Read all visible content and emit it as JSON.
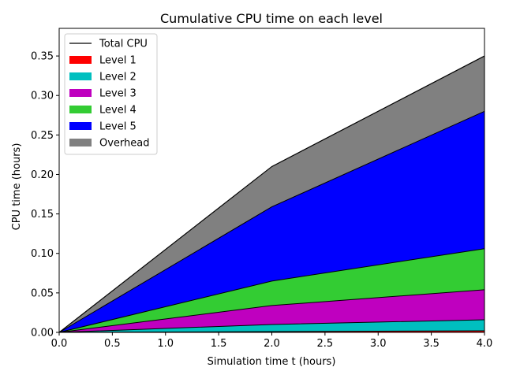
{
  "chart_data": {
    "type": "area",
    "title": "Cumulative CPU time on each level",
    "xlabel": "Simulation time t (hours)",
    "ylabel": "CPU time (hours)",
    "xlim": [
      0,
      4
    ],
    "ylim": [
      0,
      0.385
    ],
    "grid": false,
    "legend_position": "top-left",
    "x": [
      0,
      2,
      4
    ],
    "x_ticks": [
      "0.0",
      "0.5",
      "1.0",
      "1.5",
      "2.0",
      "2.5",
      "3.0",
      "3.5",
      "4.0"
    ],
    "y_ticks": [
      "0.00",
      "0.05",
      "0.10",
      "0.15",
      "0.20",
      "0.25",
      "0.30",
      "0.35"
    ],
    "series": [
      {
        "name": "Level 1",
        "color": "#ff0000",
        "values": [
          0,
          0.001,
          0.002
        ]
      },
      {
        "name": "Level 2",
        "color": "#00bfbf",
        "values": [
          0,
          0.009,
          0.014
        ]
      },
      {
        "name": "Level 3",
        "color": "#bf00bf",
        "values": [
          0,
          0.024,
          0.038
        ]
      },
      {
        "name": "Level 4",
        "color": "#33cc33",
        "values": [
          0,
          0.031,
          0.052
        ]
      },
      {
        "name": "Level 5",
        "color": "#0000ff",
        "values": [
          0,
          0.094,
          0.174
        ]
      },
      {
        "name": "Overhead",
        "color": "#808080",
        "values": [
          0,
          0.051,
          0.07
        ]
      }
    ],
    "total": {
      "name": "Total CPU",
      "color": "#000000",
      "values": [
        0,
        0.21,
        0.35
      ]
    }
  }
}
